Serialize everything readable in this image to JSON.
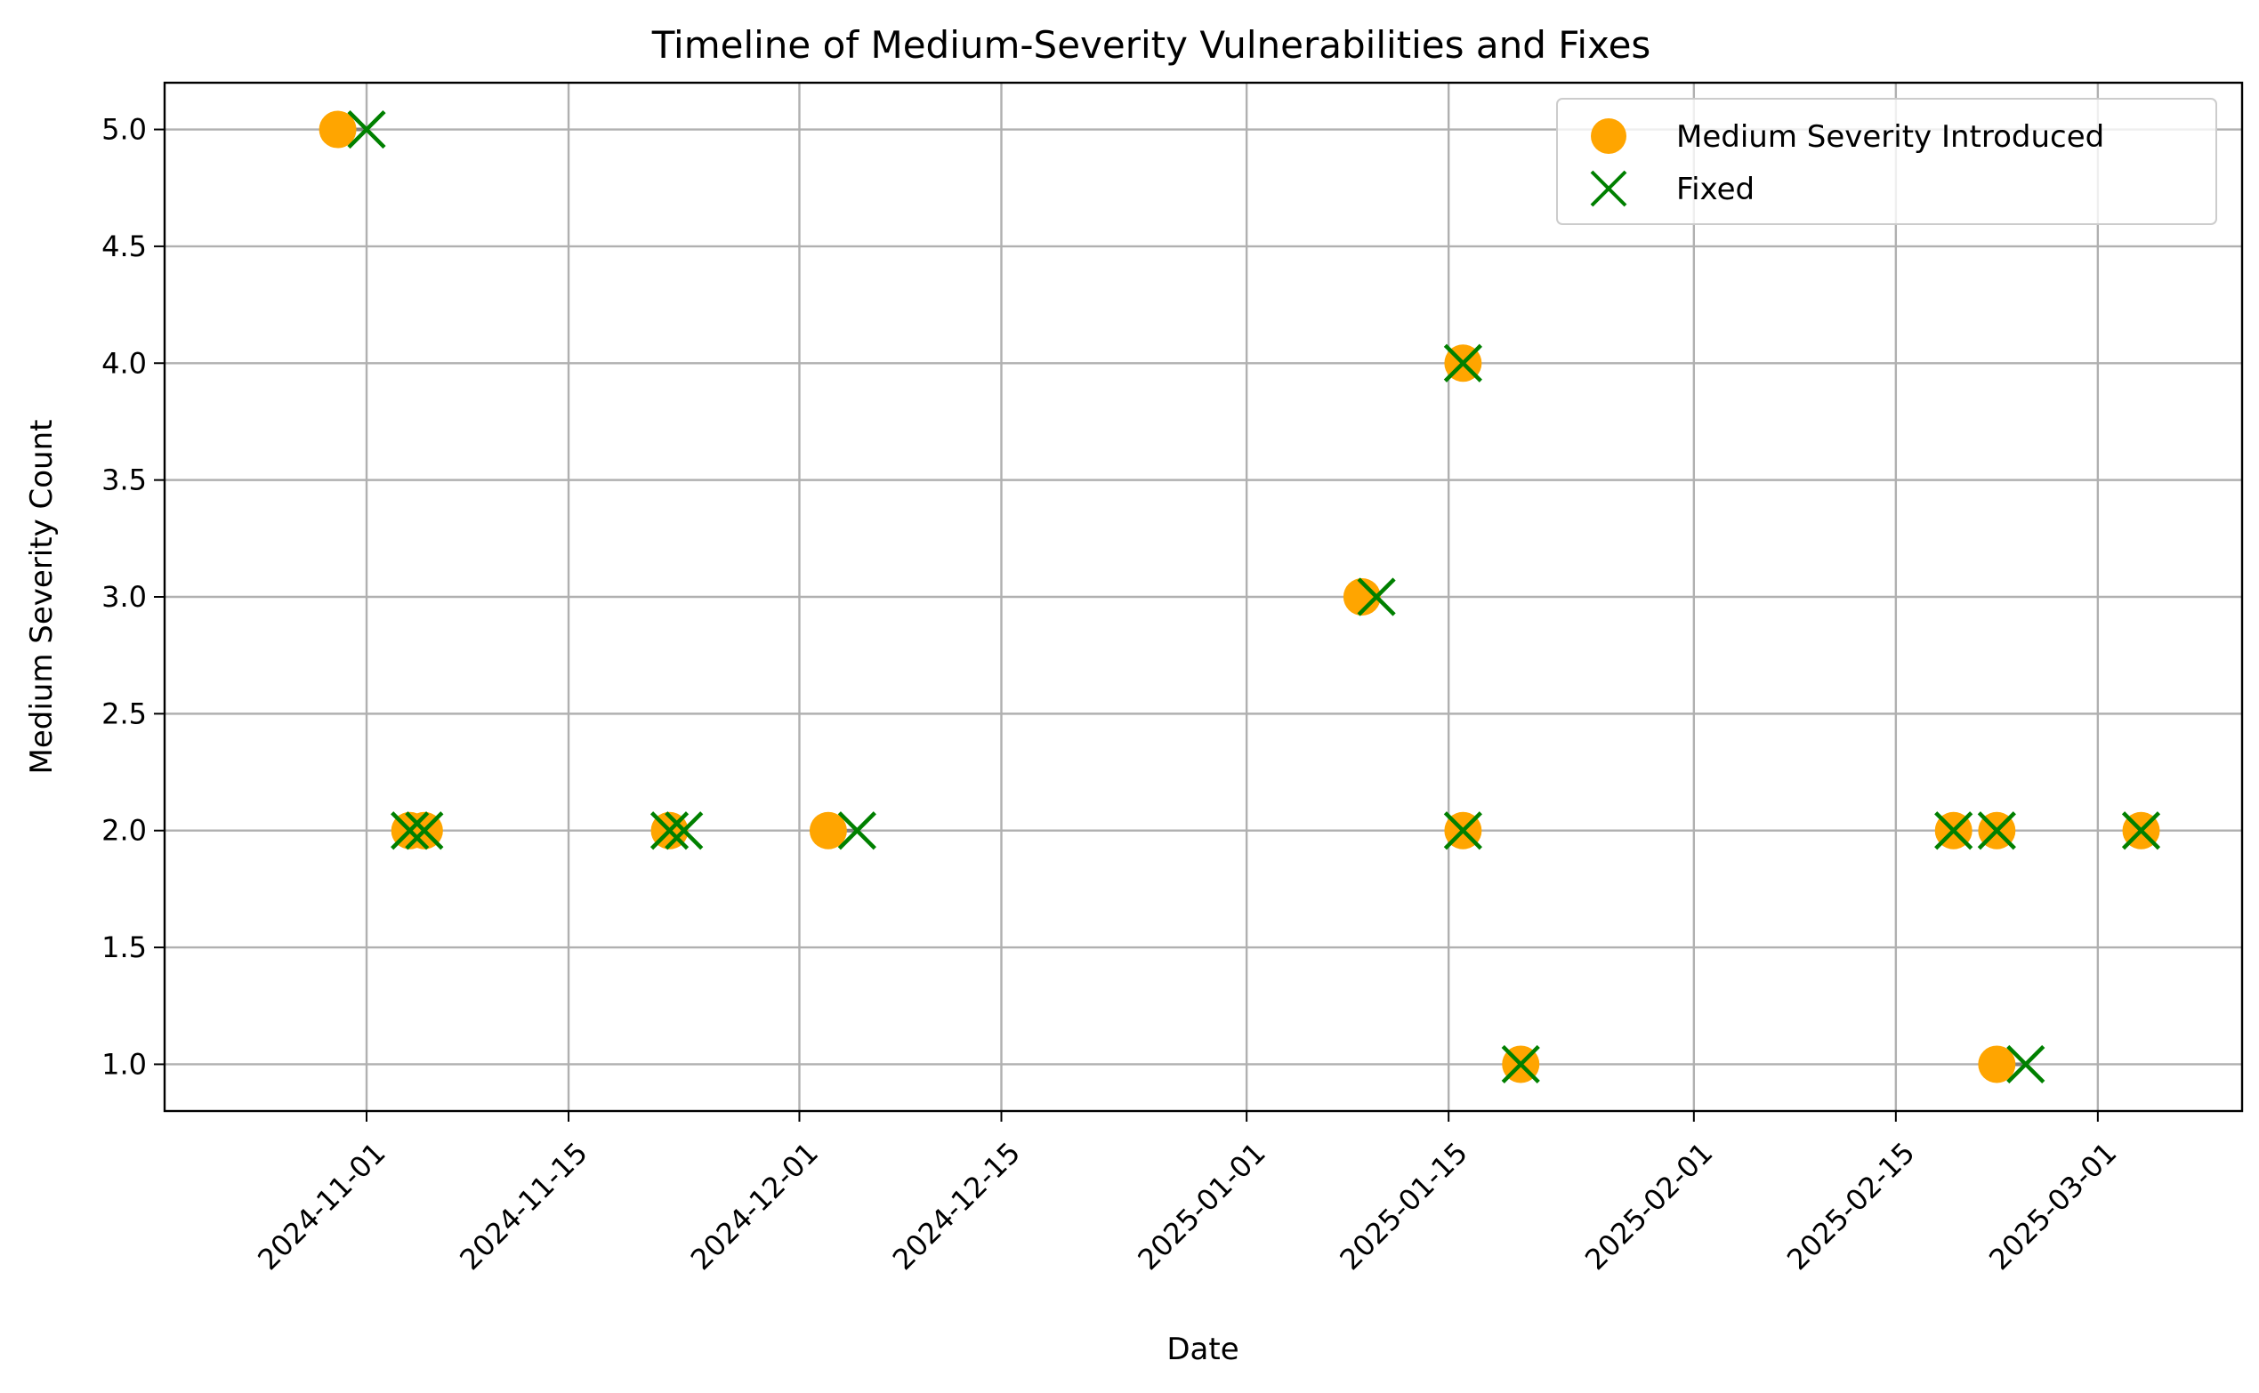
{
  "chart_data": {
    "type": "scatter",
    "title": "Timeline of Medium-Severity Vulnerabilities and Fixes",
    "xlabel": "Date",
    "ylabel": "Medium Severity Count",
    "xlim": [
      "2024-10-18",
      "2025-03-11"
    ],
    "ylim": [
      0.8,
      5.2
    ],
    "x_ticks": [
      "2024-11-01",
      "2024-11-15",
      "2024-12-01",
      "2024-12-15",
      "2025-01-01",
      "2025-01-15",
      "2025-02-01",
      "2025-02-15",
      "2025-03-01"
    ],
    "y_ticks": [
      "1.0",
      "1.5",
      "2.0",
      "2.5",
      "3.0",
      "3.5",
      "4.0",
      "4.5",
      "5.0"
    ],
    "grid": true,
    "legend_position": "upper right",
    "series": [
      {
        "name": "Medium Severity Introduced",
        "marker": "circle",
        "color": "#ffa500",
        "points": [
          {
            "x": "2024-10-30",
            "y": 5
          },
          {
            "x": "2024-11-04",
            "y": 2
          },
          {
            "x": "2024-11-05",
            "y": 2
          },
          {
            "x": "2024-11-22",
            "y": 2
          },
          {
            "x": "2024-12-03",
            "y": 2
          },
          {
            "x": "2025-01-09",
            "y": 3
          },
          {
            "x": "2025-01-16",
            "y": 4
          },
          {
            "x": "2025-01-16",
            "y": 2
          },
          {
            "x": "2025-01-20",
            "y": 1
          },
          {
            "x": "2025-02-19",
            "y": 2
          },
          {
            "x": "2025-02-22",
            "y": 2
          },
          {
            "x": "2025-02-22",
            "y": 1
          },
          {
            "x": "2025-03-04",
            "y": 2
          }
        ]
      },
      {
        "name": "Fixed",
        "marker": "x",
        "color": "#008000",
        "points": [
          {
            "x": "2024-11-01",
            "y": 5
          },
          {
            "x": "2024-11-04",
            "y": 2
          },
          {
            "x": "2024-11-05",
            "y": 2
          },
          {
            "x": "2024-11-22",
            "y": 2
          },
          {
            "x": "2024-11-23",
            "y": 2
          },
          {
            "x": "2024-12-05",
            "y": 2
          },
          {
            "x": "2025-01-10",
            "y": 3
          },
          {
            "x": "2025-01-16",
            "y": 4
          },
          {
            "x": "2025-01-16",
            "y": 2
          },
          {
            "x": "2025-01-20",
            "y": 1
          },
          {
            "x": "2025-02-19",
            "y": 2
          },
          {
            "x": "2025-02-22",
            "y": 2
          },
          {
            "x": "2025-02-24",
            "y": 1
          },
          {
            "x": "2025-03-04",
            "y": 2
          }
        ]
      }
    ],
    "connector_color": "#808080"
  }
}
